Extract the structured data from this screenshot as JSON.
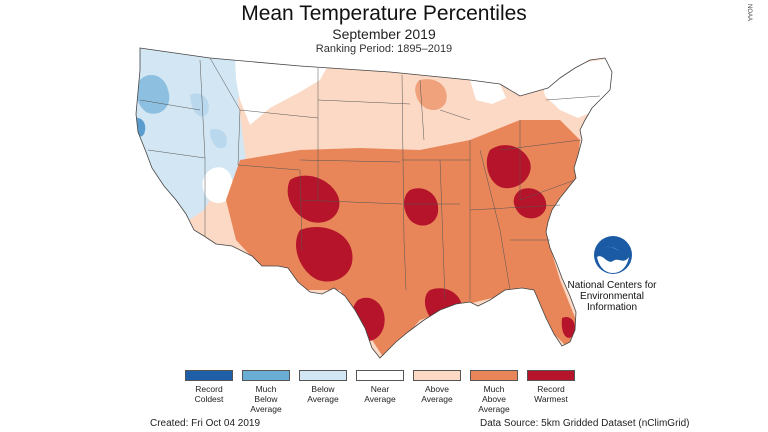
{
  "header": {
    "title": "Mean Temperature Percentiles",
    "subtitle": "September 2019",
    "ranking_period": "Ranking Period: 1895–2019"
  },
  "watermark": "NOAA",
  "organization": {
    "logo_icon": "noaa-logo-icon",
    "line1": "National Centers for",
    "line2": "Environmental",
    "line3": "Information"
  },
  "legend": {
    "items": [
      {
        "line1": "Record",
        "line2": "Coldest",
        "line3": "",
        "color": "#1f5fa8"
      },
      {
        "line1": "Much",
        "line2": "Below",
        "line3": "Average",
        "color": "#6aaed6"
      },
      {
        "line1": "Below",
        "line2": "Average",
        "line3": "",
        "color": "#d2e6f3"
      },
      {
        "line1": "Near",
        "line2": "Average",
        "line3": "",
        "color": "#ffffff"
      },
      {
        "line1": "Above",
        "line2": "Average",
        "line3": "",
        "color": "#fbd9c4"
      },
      {
        "line1": "Much",
        "line2": "Above",
        "line3": "Average",
        "color": "#e8865a"
      },
      {
        "line1": "Record",
        "line2": "Warmest",
        "line3": "",
        "color": "#b5142b"
      }
    ]
  },
  "footer": {
    "created": "Created: Fri Oct 04 2019",
    "source": "Data Source: 5km Gridded Dataset (nClimGrid)"
  }
}
